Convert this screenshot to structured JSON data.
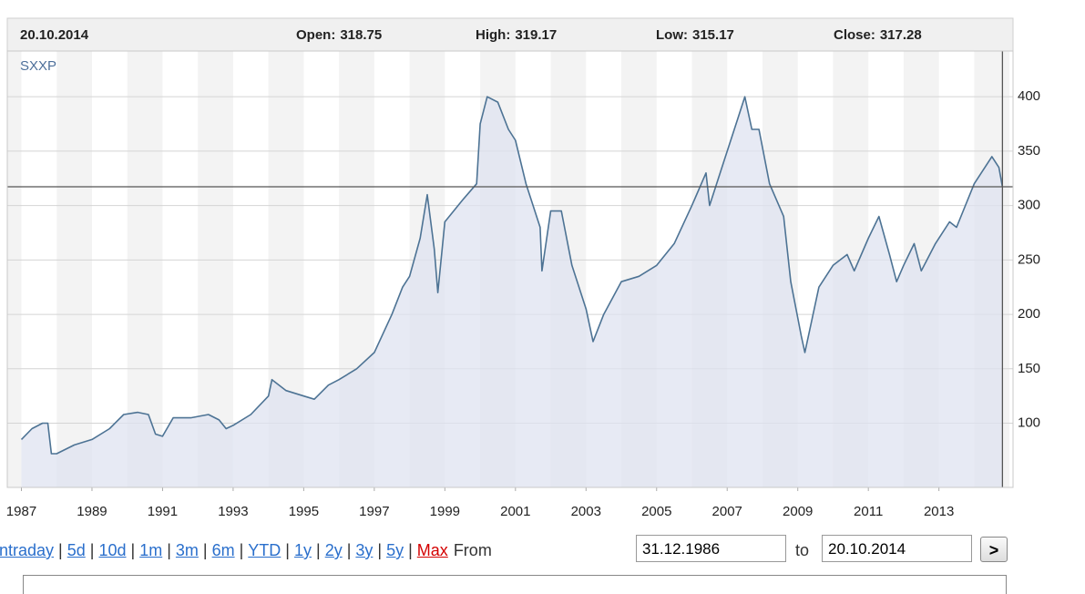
{
  "chart_data": {
    "type": "area",
    "ohlc": {
      "date": "20.10.2014",
      "open": {
        "label": "Open:",
        "value": 318.75
      },
      "high": {
        "label": "High:",
        "value": 319.17
      },
      "low": {
        "label": "Low:",
        "value": 315.17
      },
      "close": {
        "label": "Close:",
        "value": 317.28
      }
    },
    "x": [
      1987.0,
      1987.3,
      1987.6,
      1987.75,
      1987.85,
      1988.0,
      1988.5,
      1989.0,
      1989.5,
      1989.9,
      1990.3,
      1990.6,
      1990.8,
      1991.0,
      1991.3,
      1991.8,
      1992.3,
      1992.6,
      1992.8,
      1993.0,
      1993.5,
      1994.0,
      1994.1,
      1994.5,
      1995.0,
      1995.3,
      1995.7,
      1996.0,
      1996.5,
      1997.0,
      1997.5,
      1997.8,
      1998.0,
      1998.3,
      1998.5,
      1998.7,
      1998.8,
      1999.0,
      1999.5,
      1999.9,
      2000.0,
      2000.2,
      2000.5,
      2000.8,
      2001.0,
      2001.3,
      2001.7,
      2001.75,
      2002.0,
      2002.3,
      2002.6,
      2003.0,
      2003.2,
      2003.5,
      2004.0,
      2004.5,
      2005.0,
      2005.5,
      2006.0,
      2006.4,
      2006.5,
      2006.9,
      2007.3,
      2007.5,
      2007.7,
      2007.9,
      2008.2,
      2008.6,
      2008.8,
      2009.1,
      2009.2,
      2009.6,
      2010.0,
      2010.4,
      2010.6,
      2011.0,
      2011.3,
      2011.6,
      2011.8,
      2012.0,
      2012.3,
      2012.5,
      2012.9,
      2013.3,
      2013.5,
      2014.0,
      2014.5,
      2014.7,
      2014.8
    ],
    "series": [
      {
        "name": "SXXP",
        "color": "#4d7394",
        "fill": "#dfe3f0",
        "values": [
          85,
          95,
          100,
          100,
          72,
          72,
          80,
          85,
          95,
          108,
          110,
          108,
          90,
          88,
          105,
          105,
          108,
          103,
          95,
          98,
          108,
          125,
          140,
          130,
          125,
          122,
          135,
          140,
          150,
          165,
          200,
          225,
          235,
          270,
          310,
          260,
          220,
          285,
          305,
          320,
          375,
          400,
          395,
          370,
          360,
          320,
          280,
          240,
          295,
          295,
          245,
          205,
          175,
          200,
          230,
          235,
          245,
          265,
          300,
          330,
          300,
          340,
          380,
          400,
          370,
          370,
          320,
          290,
          230,
          180,
          165,
          225,
          245,
          255,
          240,
          270,
          290,
          255,
          230,
          245,
          265,
          240,
          265,
          285,
          280,
          320,
          345,
          335,
          317
        ]
      }
    ],
    "xlim": [
      1986.6,
      2015.1
    ],
    "xticks": [
      1987,
      1989,
      1991,
      1993,
      1995,
      1997,
      1999,
      2001,
      2003,
      2005,
      2007,
      2009,
      2011,
      2013
    ],
    "ylim": [
      41,
      442
    ],
    "yticks": [
      100,
      150,
      200,
      250,
      300,
      350,
      400
    ],
    "grid": true
  },
  "controls": {
    "ranges": [
      "Intraday",
      "5d",
      "10d",
      "1m",
      "3m",
      "6m",
      "YTD",
      "1y",
      "2y",
      "3y",
      "5y",
      "Max"
    ],
    "from_label": "From",
    "from": "31.12.1986",
    "to_label": "to",
    "to": "20.10.2014",
    "go": ">"
  }
}
